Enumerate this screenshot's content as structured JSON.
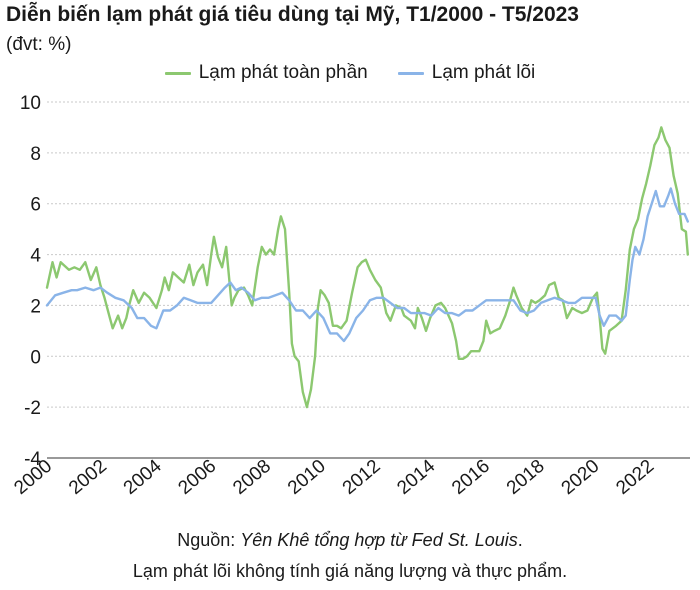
{
  "chart_data": {
    "type": "line",
    "title": "Diễn biến lạm phát giá tiêu dùng tại Mỹ, T1/2000 - T5/2023",
    "unit_label": "(đvt: %)",
    "x_ticks": [
      "2000",
      "2002",
      "2004",
      "2006",
      "2008",
      "2010",
      "2012",
      "2014",
      "2016",
      "2018",
      "2020",
      "2022"
    ],
    "y_ticks": [
      "10",
      "8",
      "6",
      "4",
      "2",
      "0",
      "-2",
      "-4"
    ],
    "xlim": [
      2000,
      2023.5
    ],
    "ylim": [
      -4,
      10
    ],
    "grid": "horizontal-dashed",
    "legend_position": "top-center",
    "series": [
      {
        "name": "Lạm phát toàn phần",
        "color": "#8cc870",
        "points": [
          [
            2000.0,
            2.7
          ],
          [
            2000.2,
            3.7
          ],
          [
            2000.35,
            3.1
          ],
          [
            2000.5,
            3.7
          ],
          [
            2000.8,
            3.4
          ],
          [
            2001.0,
            3.5
          ],
          [
            2001.2,
            3.4
          ],
          [
            2001.4,
            3.7
          ],
          [
            2001.6,
            3.0
          ],
          [
            2001.8,
            3.5
          ],
          [
            2001.95,
            2.8
          ],
          [
            2002.1,
            2.3
          ],
          [
            2002.3,
            1.5
          ],
          [
            2002.4,
            1.1
          ],
          [
            2002.6,
            1.6
          ],
          [
            2002.75,
            1.1
          ],
          [
            2002.9,
            1.5
          ],
          [
            2003.0,
            2.0
          ],
          [
            2003.15,
            2.6
          ],
          [
            2003.35,
            2.1
          ],
          [
            2003.55,
            2.5
          ],
          [
            2003.75,
            2.3
          ],
          [
            2004.0,
            1.9
          ],
          [
            2004.2,
            2.6
          ],
          [
            2004.3,
            3.1
          ],
          [
            2004.45,
            2.6
          ],
          [
            2004.6,
            3.3
          ],
          [
            2004.8,
            3.1
          ],
          [
            2005.0,
            2.9
          ],
          [
            2005.2,
            3.6
          ],
          [
            2005.35,
            2.8
          ],
          [
            2005.5,
            3.3
          ],
          [
            2005.7,
            3.6
          ],
          [
            2005.85,
            2.8
          ],
          [
            2006.0,
            4.0
          ],
          [
            2006.1,
            4.7
          ],
          [
            2006.25,
            3.9
          ],
          [
            2006.4,
            3.5
          ],
          [
            2006.55,
            4.3
          ],
          [
            2006.75,
            2.0
          ],
          [
            2006.85,
            2.3
          ],
          [
            2007.0,
            2.6
          ],
          [
            2007.2,
            2.7
          ],
          [
            2007.35,
            2.4
          ],
          [
            2007.5,
            2.0
          ],
          [
            2007.7,
            3.5
          ],
          [
            2007.85,
            4.3
          ],
          [
            2008.0,
            4.0
          ],
          [
            2008.15,
            4.2
          ],
          [
            2008.3,
            4.0
          ],
          [
            2008.45,
            5.0
          ],
          [
            2008.55,
            5.5
          ],
          [
            2008.7,
            5.0
          ],
          [
            2008.85,
            2.5
          ],
          [
            2008.95,
            0.5
          ],
          [
            2009.05,
            0.0
          ],
          [
            2009.2,
            -0.2
          ],
          [
            2009.35,
            -1.4
          ],
          [
            2009.5,
            -2.0
          ],
          [
            2009.65,
            -1.3
          ],
          [
            2009.8,
            0.0
          ],
          [
            2009.9,
            1.9
          ],
          [
            2010.0,
            2.6
          ],
          [
            2010.15,
            2.4
          ],
          [
            2010.3,
            2.1
          ],
          [
            2010.45,
            1.2
          ],
          [
            2010.6,
            1.2
          ],
          [
            2010.75,
            1.1
          ],
          [
            2010.95,
            1.4
          ],
          [
            2011.15,
            2.5
          ],
          [
            2011.35,
            3.5
          ],
          [
            2011.5,
            3.7
          ],
          [
            2011.65,
            3.8
          ],
          [
            2011.8,
            3.4
          ],
          [
            2012.0,
            3.0
          ],
          [
            2012.2,
            2.7
          ],
          [
            2012.4,
            1.7
          ],
          [
            2012.55,
            1.4
          ],
          [
            2012.75,
            2.0
          ],
          [
            2012.95,
            1.9
          ],
          [
            2013.05,
            1.6
          ],
          [
            2013.3,
            1.4
          ],
          [
            2013.45,
            1.1
          ],
          [
            2013.55,
            1.9
          ],
          [
            2013.7,
            1.5
          ],
          [
            2013.85,
            1.0
          ],
          [
            2014.0,
            1.5
          ],
          [
            2014.2,
            2.0
          ],
          [
            2014.4,
            2.1
          ],
          [
            2014.55,
            1.9
          ],
          [
            2014.8,
            1.3
          ],
          [
            2014.95,
            0.6
          ],
          [
            2015.05,
            -0.1
          ],
          [
            2015.2,
            -0.1
          ],
          [
            2015.35,
            0.0
          ],
          [
            2015.5,
            0.2
          ],
          [
            2015.65,
            0.2
          ],
          [
            2015.8,
            0.2
          ],
          [
            2015.95,
            0.6
          ],
          [
            2016.05,
            1.4
          ],
          [
            2016.2,
            0.9
          ],
          [
            2016.35,
            1.0
          ],
          [
            2016.55,
            1.1
          ],
          [
            2016.75,
            1.6
          ],
          [
            2016.9,
            2.1
          ],
          [
            2017.05,
            2.7
          ],
          [
            2017.15,
            2.4
          ],
          [
            2017.35,
            1.9
          ],
          [
            2017.55,
            1.6
          ],
          [
            2017.7,
            2.2
          ],
          [
            2017.85,
            2.1
          ],
          [
            2018.0,
            2.2
          ],
          [
            2018.2,
            2.4
          ],
          [
            2018.35,
            2.8
          ],
          [
            2018.55,
            2.9
          ],
          [
            2018.7,
            2.3
          ],
          [
            2018.85,
            2.2
          ],
          [
            2019.0,
            1.5
          ],
          [
            2019.2,
            1.9
          ],
          [
            2019.35,
            1.8
          ],
          [
            2019.55,
            1.7
          ],
          [
            2019.75,
            1.8
          ],
          [
            2019.95,
            2.3
          ],
          [
            2020.1,
            2.5
          ],
          [
            2020.2,
            1.5
          ],
          [
            2020.3,
            0.3
          ],
          [
            2020.4,
            0.1
          ],
          [
            2020.55,
            1.0
          ],
          [
            2020.8,
            1.2
          ],
          [
            2021.0,
            1.4
          ],
          [
            2021.15,
            2.6
          ],
          [
            2021.3,
            4.2
          ],
          [
            2021.45,
            5.0
          ],
          [
            2021.6,
            5.4
          ],
          [
            2021.75,
            6.2
          ],
          [
            2021.9,
            6.8
          ],
          [
            2022.05,
            7.5
          ],
          [
            2022.2,
            8.3
          ],
          [
            2022.35,
            8.6
          ],
          [
            2022.45,
            9.0
          ],
          [
            2022.6,
            8.5
          ],
          [
            2022.75,
            8.2
          ],
          [
            2022.9,
            7.1
          ],
          [
            2023.05,
            6.4
          ],
          [
            2023.2,
            5.0
          ],
          [
            2023.35,
            4.9
          ],
          [
            2023.42,
            4.0
          ]
        ]
      },
      {
        "name": "Lạm phát lõi",
        "color": "#8ab4e8",
        "points": [
          [
            2000.0,
            2.0
          ],
          [
            2000.3,
            2.4
          ],
          [
            2000.6,
            2.5
          ],
          [
            2000.9,
            2.6
          ],
          [
            2001.1,
            2.6
          ],
          [
            2001.4,
            2.7
          ],
          [
            2001.7,
            2.6
          ],
          [
            2001.95,
            2.7
          ],
          [
            2002.2,
            2.5
          ],
          [
            2002.5,
            2.3
          ],
          [
            2002.8,
            2.2
          ],
          [
            2003.1,
            1.9
          ],
          [
            2003.3,
            1.5
          ],
          [
            2003.55,
            1.5
          ],
          [
            2003.8,
            1.2
          ],
          [
            2004.0,
            1.1
          ],
          [
            2004.25,
            1.8
          ],
          [
            2004.5,
            1.8
          ],
          [
            2004.75,
            2.0
          ],
          [
            2005.0,
            2.3
          ],
          [
            2005.25,
            2.2
          ],
          [
            2005.5,
            2.1
          ],
          [
            2005.75,
            2.1
          ],
          [
            2006.0,
            2.1
          ],
          [
            2006.25,
            2.4
          ],
          [
            2006.5,
            2.7
          ],
          [
            2006.7,
            2.9
          ],
          [
            2006.9,
            2.6
          ],
          [
            2007.1,
            2.7
          ],
          [
            2007.35,
            2.5
          ],
          [
            2007.6,
            2.2
          ],
          [
            2007.85,
            2.3
          ],
          [
            2008.1,
            2.3
          ],
          [
            2008.35,
            2.4
          ],
          [
            2008.6,
            2.5
          ],
          [
            2008.85,
            2.2
          ],
          [
            2009.1,
            1.8
          ],
          [
            2009.35,
            1.8
          ],
          [
            2009.6,
            1.5
          ],
          [
            2009.85,
            1.8
          ],
          [
            2010.1,
            1.5
          ],
          [
            2010.35,
            0.9
          ],
          [
            2010.6,
            0.9
          ],
          [
            2010.85,
            0.6
          ],
          [
            2011.05,
            0.9
          ],
          [
            2011.3,
            1.5
          ],
          [
            2011.55,
            1.8
          ],
          [
            2011.8,
            2.2
          ],
          [
            2012.05,
            2.3
          ],
          [
            2012.3,
            2.3
          ],
          [
            2012.55,
            2.1
          ],
          [
            2012.8,
            1.9
          ],
          [
            2013.05,
            1.9
          ],
          [
            2013.3,
            1.7
          ],
          [
            2013.55,
            1.7
          ],
          [
            2013.8,
            1.7
          ],
          [
            2014.05,
            1.6
          ],
          [
            2014.3,
            1.9
          ],
          [
            2014.55,
            1.7
          ],
          [
            2014.8,
            1.7
          ],
          [
            2015.05,
            1.6
          ],
          [
            2015.3,
            1.8
          ],
          [
            2015.55,
            1.8
          ],
          [
            2015.8,
            2.0
          ],
          [
            2016.05,
            2.2
          ],
          [
            2016.3,
            2.2
          ],
          [
            2016.55,
            2.2
          ],
          [
            2016.8,
            2.2
          ],
          [
            2017.05,
            2.2
          ],
          [
            2017.3,
            1.8
          ],
          [
            2017.55,
            1.7
          ],
          [
            2017.8,
            1.8
          ],
          [
            2018.05,
            2.1
          ],
          [
            2018.3,
            2.2
          ],
          [
            2018.55,
            2.3
          ],
          [
            2018.8,
            2.2
          ],
          [
            2019.05,
            2.1
          ],
          [
            2019.3,
            2.1
          ],
          [
            2019.55,
            2.3
          ],
          [
            2019.8,
            2.3
          ],
          [
            2020.05,
            2.3
          ],
          [
            2020.2,
            1.6
          ],
          [
            2020.35,
            1.2
          ],
          [
            2020.55,
            1.6
          ],
          [
            2020.8,
            1.6
          ],
          [
            2021.0,
            1.4
          ],
          [
            2021.15,
            1.6
          ],
          [
            2021.3,
            3.0
          ],
          [
            2021.4,
            3.8
          ],
          [
            2021.5,
            4.3
          ],
          [
            2021.65,
            4.0
          ],
          [
            2021.8,
            4.6
          ],
          [
            2021.95,
            5.5
          ],
          [
            2022.1,
            6.0
          ],
          [
            2022.25,
            6.5
          ],
          [
            2022.4,
            5.9
          ],
          [
            2022.55,
            5.9
          ],
          [
            2022.7,
            6.3
          ],
          [
            2022.8,
            6.6
          ],
          [
            2022.95,
            6.0
          ],
          [
            2023.1,
            5.6
          ],
          [
            2023.3,
            5.6
          ],
          [
            2023.42,
            5.3
          ]
        ]
      }
    ]
  },
  "footer": {
    "source_label": "Nguồn: ",
    "source_text": "Yên Khê tổng hợp từ Fed St. Louis",
    "source_end": ".",
    "note": "Lạm phát lõi không tính giá năng lượng và thực phẩm."
  }
}
